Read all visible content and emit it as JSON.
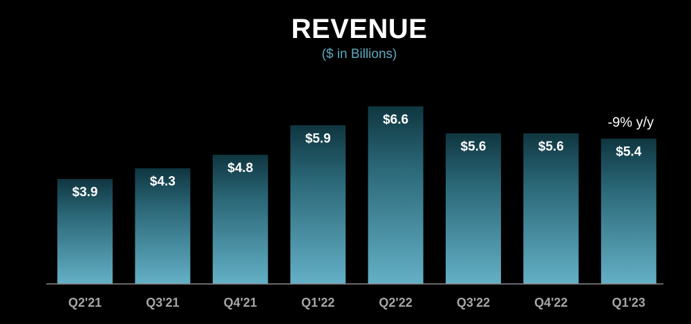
{
  "chart_data": {
    "type": "bar",
    "title": "REVENUE",
    "subtitle": "($ in Billions)",
    "categories": [
      "Q2'21",
      "Q3'21",
      "Q4'21",
      "Q1'22",
      "Q2'22",
      "Q3'22",
      "Q4'22",
      "Q1'23"
    ],
    "values": [
      3.9,
      4.3,
      4.8,
      5.9,
      6.6,
      5.6,
      5.6,
      5.4
    ],
    "value_labels": [
      "$3.9",
      "$4.3",
      "$4.8",
      "$5.9",
      "$6.6",
      "$5.6",
      "$5.6",
      "$5.4"
    ],
    "xlabel": "",
    "ylabel": "",
    "ylim": [
      0,
      6.6
    ],
    "grid": false,
    "annotations": [
      {
        "category": "Q1'23",
        "text": "-9% y/y"
      }
    ],
    "colors": {
      "background": "#000000",
      "bar_top": "#0f3640",
      "bar_bottom": "#64b0c6",
      "axis": "#8c8c8c",
      "title": "#ffffff",
      "subtitle": "#5ea9c0",
      "tick_label": "#a6a6a6"
    }
  }
}
